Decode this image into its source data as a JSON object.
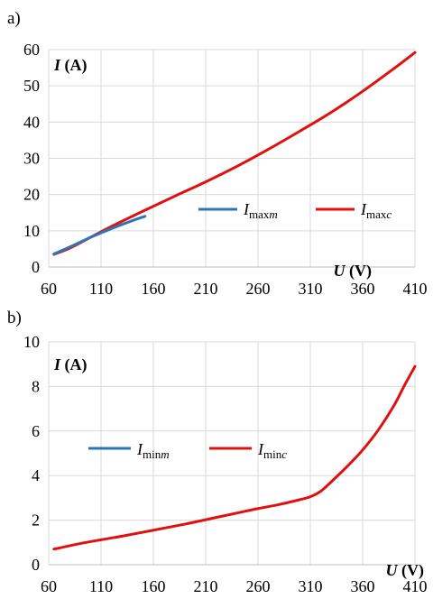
{
  "chart_data": [
    {
      "type": "line",
      "panel_label": "a)",
      "x_ticks": [
        "60",
        "110",
        "160",
        "210",
        "260",
        "310",
        "360",
        "410"
      ],
      "y_ticks": [
        "0",
        "10",
        "20",
        "30",
        "40",
        "50",
        "60"
      ],
      "xlim": [
        60,
        410
      ],
      "ylim": [
        0,
        60
      ],
      "ylabel": {
        "symbol": "I",
        "unit": " (A)"
      },
      "xlabel": {
        "symbol": "U",
        "unit": " (V)"
      },
      "grid": true,
      "legend_position": "right",
      "series": [
        {
          "name": {
            "symbol": "I",
            "sub": "max",
            "sub_italic": "m"
          },
          "color": "#2E75B6",
          "x": [
            65,
            80,
            100,
            120,
            140,
            152
          ],
          "y": [
            3.6,
            5.5,
            8.2,
            10.6,
            12.8,
            14.0
          ]
        },
        {
          "name": {
            "symbol": "I",
            "sub": "max",
            "sub_italic": "c"
          },
          "color": "#E01010",
          "x": [
            65,
            80,
            100,
            120,
            150,
            180,
            210,
            240,
            270,
            300,
            330,
            360,
            390,
            410
          ],
          "y": [
            3.5,
            5.2,
            8.2,
            11.2,
            15.4,
            19.5,
            23.5,
            27.8,
            32.5,
            37.5,
            42.7,
            48.5,
            54.8,
            59.2
          ]
        }
      ]
    },
    {
      "type": "line",
      "panel_label": "b)",
      "x_ticks": [
        "60",
        "110",
        "160",
        "210",
        "260",
        "310",
        "360",
        "410"
      ],
      "y_ticks": [
        "0",
        "2",
        "4",
        "6",
        "8",
        "10"
      ],
      "xlim": [
        60,
        410
      ],
      "ylim": [
        0,
        10
      ],
      "ylabel": {
        "symbol": "I",
        "unit": " (A)"
      },
      "xlabel": {
        "symbol": "U",
        "unit": " (V)"
      },
      "grid": true,
      "legend_position": "left",
      "series": [
        {
          "name": {
            "symbol": "I",
            "sub": "min",
            "sub_italic": "m"
          },
          "color": "#2E75B6",
          "x": [],
          "y": []
        },
        {
          "name": {
            "symbol": "I",
            "sub": "min",
            "sub_italic": "c"
          },
          "color": "#E01010",
          "x": [
            65,
            90,
            110,
            130,
            160,
            190,
            210,
            240,
            260,
            280,
            300,
            310,
            320,
            330,
            345,
            360,
            375,
            390,
            400,
            410
          ],
          "y": [
            0.7,
            0.95,
            1.12,
            1.28,
            1.55,
            1.82,
            2.02,
            2.32,
            2.52,
            2.7,
            2.92,
            3.05,
            3.3,
            3.72,
            4.4,
            5.15,
            6.05,
            7.15,
            8.05,
            8.9
          ]
        }
      ]
    }
  ]
}
